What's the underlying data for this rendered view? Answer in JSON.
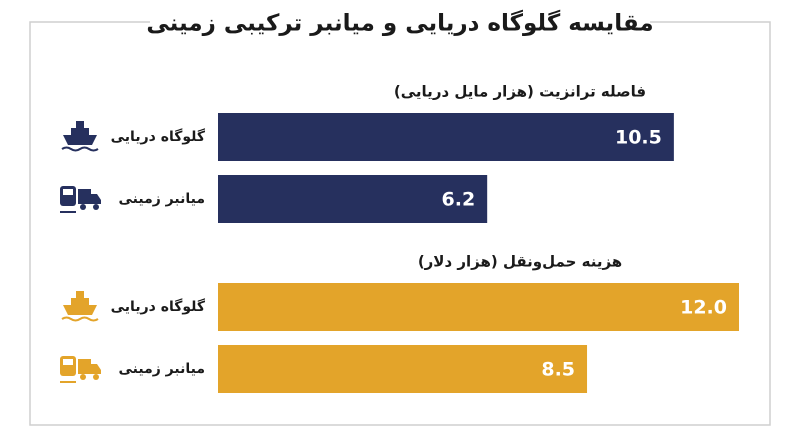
{
  "title": "مقایسه گلوگاه دریایی و میانبر ترکیبی زمینی",
  "chart_data": [
    {
      "type": "bar",
      "title": "فاصله ترانزیت (هزار مایل دریایی)",
      "categories": [
        "گلوگاه دریایی",
        "میانبر زمینی"
      ],
      "values": [
        10.5,
        6.2
      ],
      "color": "#26305e"
    },
    {
      "type": "bar",
      "title": "هزینه حمل‌ونقل (هزار دلار)",
      "categories": [
        "گلوگاه دریایی",
        "میانبر زمینی"
      ],
      "values": [
        12.0,
        8.5
      ],
      "value_labels": [
        "12.0",
        "8.5"
      ],
      "color": "#e3a42a"
    }
  ]
}
